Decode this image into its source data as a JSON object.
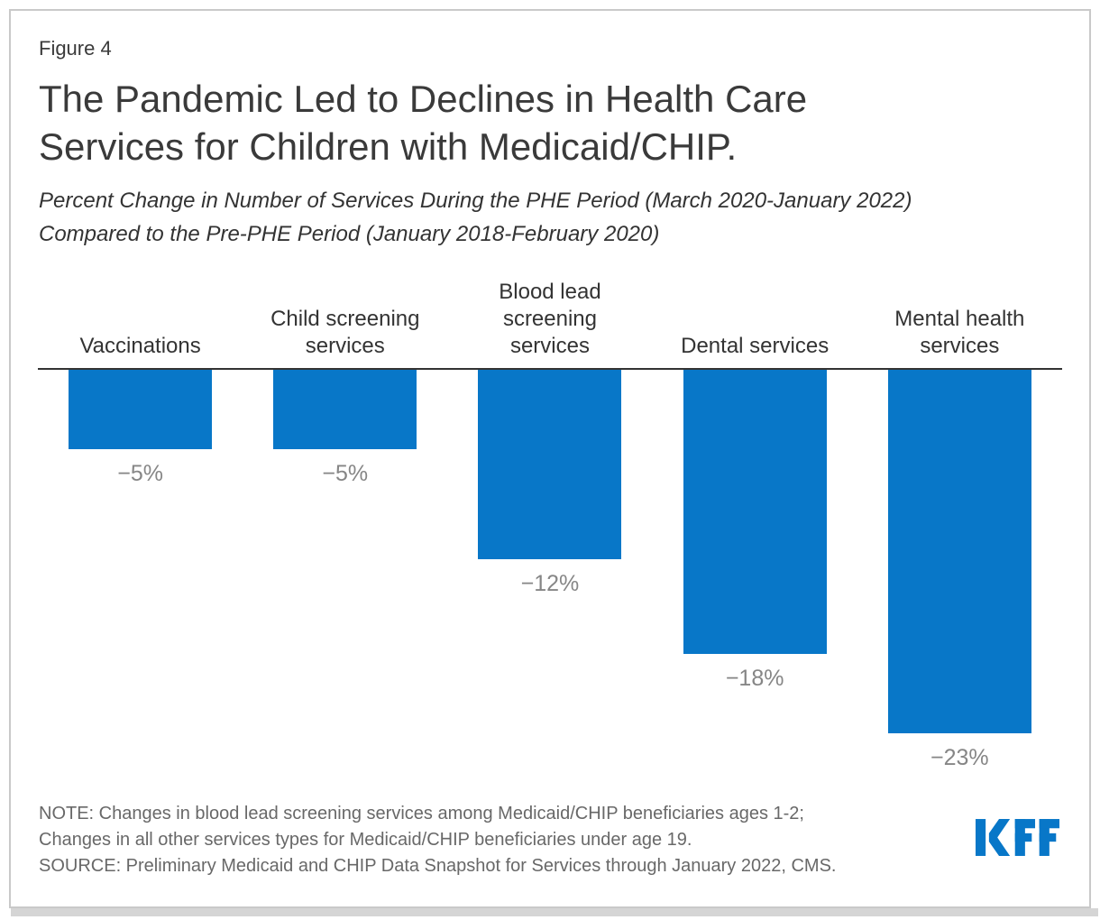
{
  "figure_label": "Figure 4",
  "header": {
    "title": "The Pandemic Led to Declines in Health Care\nServices for Children with Medicaid/CHIP.",
    "subtitle": "Percent Change in Number of Services During the PHE Period (March 2020-January 2022)\nCompared to the Pre-PHE Period (January 2018-February 2020)"
  },
  "chart_data": {
    "type": "bar",
    "title": "The Pandemic Led to Declines in Health Care Services for Children with Medicaid/CHIP.",
    "subtitle": "Percent Change in Number of Services During the PHE Period (March 2020-January 2022) Compared to the Pre-PHE Period (January 2018-February 2020)",
    "categories": [
      "Vaccinations",
      "Child screening services",
      "Blood lead screening services",
      "Dental services",
      "Mental health services"
    ],
    "values": [
      -5,
      -5,
      -12,
      -18,
      -23
    ],
    "unit": "%",
    "ylim": [
      -25,
      0
    ],
    "orientation": "vertical-below-baseline",
    "grid": false,
    "legend": false,
    "display": {
      "categories": [
        "Vaccinations",
        "Child screening\nservices",
        "Blood lead\nscreening\nservices",
        "Dental services",
        "Mental health\nservices"
      ],
      "values": [
        "−5%",
        "−5%",
        "−12%",
        "−18%",
        "−23%"
      ]
    }
  },
  "footer": {
    "note": "NOTE: Changes in blood lead screening services among Medicaid/CHIP beneficiaries ages 1-2;\nChanges in all other services types for Medicaid/CHIP beneficiaries under age 19.",
    "source": "SOURCE: Preliminary Medicaid and CHIP Data Snapshot for Services through January 2022, CMS.",
    "logo_text": "KFF"
  },
  "colors": {
    "bar": "#0877c8",
    "logo": "#0877c8",
    "baseline": "#333333",
    "title_text": "#3a3a3a",
    "value_label_text": "#868686",
    "note_text": "#686868",
    "card_border": "#c9c9c9",
    "card_shadow": "#d5d5d5"
  }
}
